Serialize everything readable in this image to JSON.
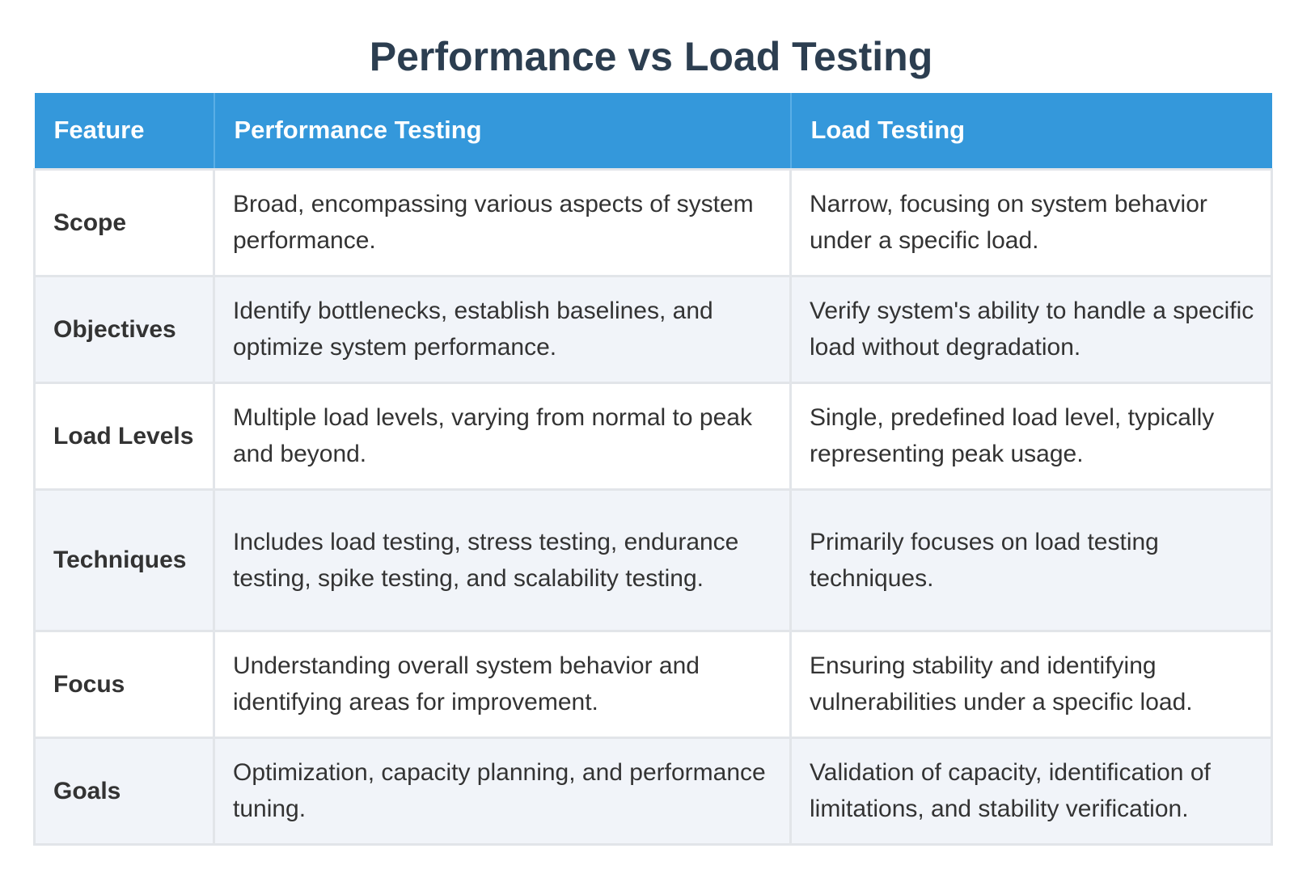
{
  "title": "Performance vs Load Testing",
  "table": {
    "headers": [
      "Feature",
      "Performance Testing",
      "Load Testing"
    ],
    "rows": [
      {
        "feature": "Scope",
        "performance": "Broad, encompassing various aspects of system performance.",
        "load": "Narrow, focusing on system behavior under a specific load."
      },
      {
        "feature": "Objectives",
        "performance": "Identify bottlenecks, establish baselines, and optimize system performance.",
        "load": "Verify system's ability to handle a specific load without degradation."
      },
      {
        "feature": "Load Levels",
        "performance": "Multiple load levels, varying from normal to peak and beyond.",
        "load": "Single, predefined load level, typically representing peak usage."
      },
      {
        "feature": "Techniques",
        "performance": "Includes load testing, stress testing, endurance testing, spike testing, and scalability testing.",
        "load": "Primarily focuses on load testing techniques."
      },
      {
        "feature": "Focus",
        "performance": "Understanding overall system behavior and identifying areas for improvement.",
        "load": "Ensuring stability and identifying vulnerabilities under a specific load."
      },
      {
        "feature": "Goals",
        "performance": "Optimization, capacity planning, and performance tuning.",
        "load": "Validation of capacity, identification of limitations, and stability verification."
      }
    ]
  },
  "colors": {
    "title": "#2c3e50",
    "header_bg": "#3498db",
    "header_text": "#ffffff",
    "row_alt_bg": "#f1f4f9",
    "border": "#e2e5e9"
  }
}
